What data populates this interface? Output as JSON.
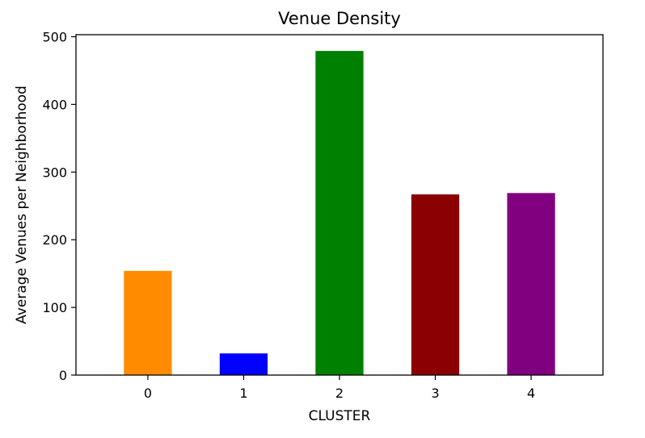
{
  "chart_data": {
    "type": "bar",
    "title": "Venue Density",
    "xlabel": "CLUSTER",
    "ylabel": "Average Venues per Neighborhood",
    "categories": [
      "0",
      "1",
      "2",
      "3",
      "4"
    ],
    "values": [
      154,
      32,
      479,
      267,
      269
    ],
    "colors": [
      "#ff8c00",
      "#0000ff",
      "#008000",
      "#8b0000",
      "#800080"
    ],
    "ylim": [
      0,
      503
    ],
    "yticks": [
      0,
      100,
      200,
      300,
      400,
      500
    ],
    "grid": false,
    "legend": "none"
  }
}
